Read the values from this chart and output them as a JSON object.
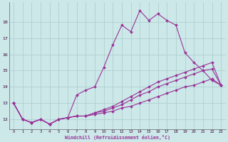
{
  "xlabel": "Windchill (Refroidissement éolien,°C)",
  "background_color": "#cce8e8",
  "grid_color": "#aacccc",
  "line_color": "#993399",
  "xlim": [
    -0.5,
    23.5
  ],
  "ylim": [
    11.4,
    19.2
  ],
  "xticks": [
    0,
    1,
    2,
    3,
    4,
    5,
    6,
    7,
    8,
    9,
    10,
    11,
    12,
    13,
    14,
    15,
    16,
    17,
    18,
    19,
    20,
    21,
    22,
    23
  ],
  "yticks": [
    12,
    13,
    14,
    15,
    16,
    17,
    18
  ],
  "series": [
    [
      13.0,
      12.0,
      11.8,
      12.0,
      11.7,
      12.0,
      12.1,
      13.5,
      13.8,
      14.0,
      15.2,
      16.6,
      17.8,
      17.4,
      18.7,
      18.1,
      18.5,
      18.1,
      17.8,
      16.1,
      15.5,
      15.0,
      14.4,
      14.1
    ],
    [
      13.0,
      12.0,
      11.8,
      12.0,
      11.7,
      12.0,
      12.1,
      12.2,
      12.2,
      12.4,
      12.6,
      12.8,
      13.1,
      13.4,
      13.7,
      14.0,
      14.3,
      14.5,
      14.7,
      14.9,
      15.1,
      15.3,
      15.5,
      14.1
    ],
    [
      13.0,
      12.0,
      11.8,
      12.0,
      11.7,
      12.0,
      12.1,
      12.2,
      12.2,
      12.4,
      12.5,
      12.7,
      12.9,
      13.2,
      13.5,
      13.7,
      14.0,
      14.2,
      14.4,
      14.6,
      14.8,
      15.0,
      15.1,
      14.1
    ],
    [
      13.0,
      12.0,
      11.8,
      12.0,
      11.7,
      12.0,
      12.1,
      12.2,
      12.2,
      12.3,
      12.4,
      12.5,
      12.7,
      12.8,
      13.0,
      13.2,
      13.4,
      13.6,
      13.8,
      14.0,
      14.1,
      14.3,
      14.5,
      14.1
    ]
  ]
}
